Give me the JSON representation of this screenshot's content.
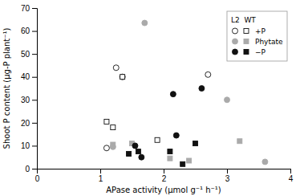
{
  "chart_data": {
    "type": "scatter",
    "xlabel": "APase activity (μmol g⁻¹ h⁻¹)",
    "ylabel": "Shoot P content (μg-P plant⁻¹)",
    "xlim": [
      0,
      4
    ],
    "ylim": [
      0,
      70
    ],
    "xticks": [
      0,
      1,
      2,
      3,
      4
    ],
    "yticks": [
      0,
      10,
      20,
      30,
      40,
      50,
      60,
      70
    ],
    "grid": false,
    "legend": "upper right",
    "legend_title": "L2  WT",
    "series": [
      {
        "name": "+P",
        "marker": "circle",
        "color": "#ffffff",
        "x": [
          1.1,
          1.25,
          1.35,
          2.7
        ],
        "values": [
          9.0,
          44.0,
          40.0,
          41.0
        ]
      },
      {
        "name": "+P",
        "marker": "square",
        "color": "#ffffff",
        "x": [
          1.1,
          1.2,
          1.35,
          1.9
        ],
        "values": [
          20.5,
          18.0,
          40.0,
          12.5
        ]
      },
      {
        "name": "Phytate",
        "marker": "circle",
        "color": "#aaaaaa",
        "x": [
          1.2,
          1.7,
          3.0,
          3.6
        ],
        "values": [
          9.5,
          63.5,
          30.0,
          3.0
        ]
      },
      {
        "name": "Phytate",
        "marker": "square",
        "color": "#aaaaaa",
        "x": [
          1.2,
          1.5,
          2.1,
          2.4,
          3.2
        ],
        "values": [
          10.5,
          11.0,
          4.5,
          3.5,
          12.0
        ]
      },
      {
        "name": "−P",
        "marker": "circle",
        "color": "#111111",
        "x": [
          1.55,
          1.65,
          2.15,
          2.2,
          2.6
        ],
        "values": [
          10.0,
          5.0,
          32.5,
          14.5,
          35.0
        ]
      },
      {
        "name": "−P",
        "marker": "square",
        "color": "#111111",
        "x": [
          1.45,
          1.6,
          2.1,
          2.3,
          2.5
        ],
        "values": [
          6.5,
          7.5,
          7.5,
          2.0,
          11.0
        ]
      }
    ]
  }
}
